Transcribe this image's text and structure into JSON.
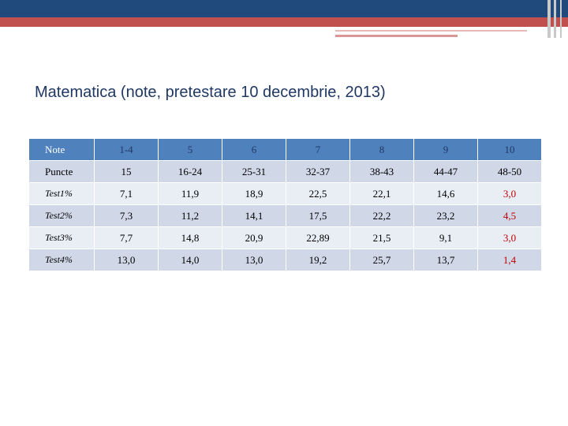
{
  "slide": {
    "title": "Matematica (note, pretestare 10 decembrie, 2013)"
  },
  "table": {
    "header": [
      "Note",
      "1-4",
      "5",
      "6",
      "7",
      "8",
      "9",
      "10"
    ],
    "rows": [
      [
        "Puncte",
        "15",
        "16-24",
        "25-31",
        "32-37",
        "38-43",
        "44-47",
        "48-50"
      ],
      [
        "Test1%",
        "7,1",
        "11,9",
        "18,9",
        "22,5",
        "22,1",
        "14,6",
        "3,0"
      ],
      [
        "Test2%",
        "7,3",
        "11,2",
        "14,1",
        "17,5",
        "22,2",
        "23,2",
        "4,5"
      ],
      [
        "Test3%",
        "7,7",
        "14,8",
        "20,9",
        "22,89",
        "21,5",
        "9,1",
        "3,0"
      ],
      [
        "Test4%",
        "13,0",
        "14,0",
        "13,0",
        "19,2",
        "25,7",
        "13,7",
        "1,4"
      ]
    ]
  },
  "colors": {
    "header_bg": "#4f81bd",
    "row_bg_1": "#d0d8e8",
    "row_bg_2": "#e9edf4",
    "highlight_text": "#c00000",
    "title_text": "#1f3864",
    "top_band": "#214a7c",
    "accent_red": "#c0504d"
  }
}
